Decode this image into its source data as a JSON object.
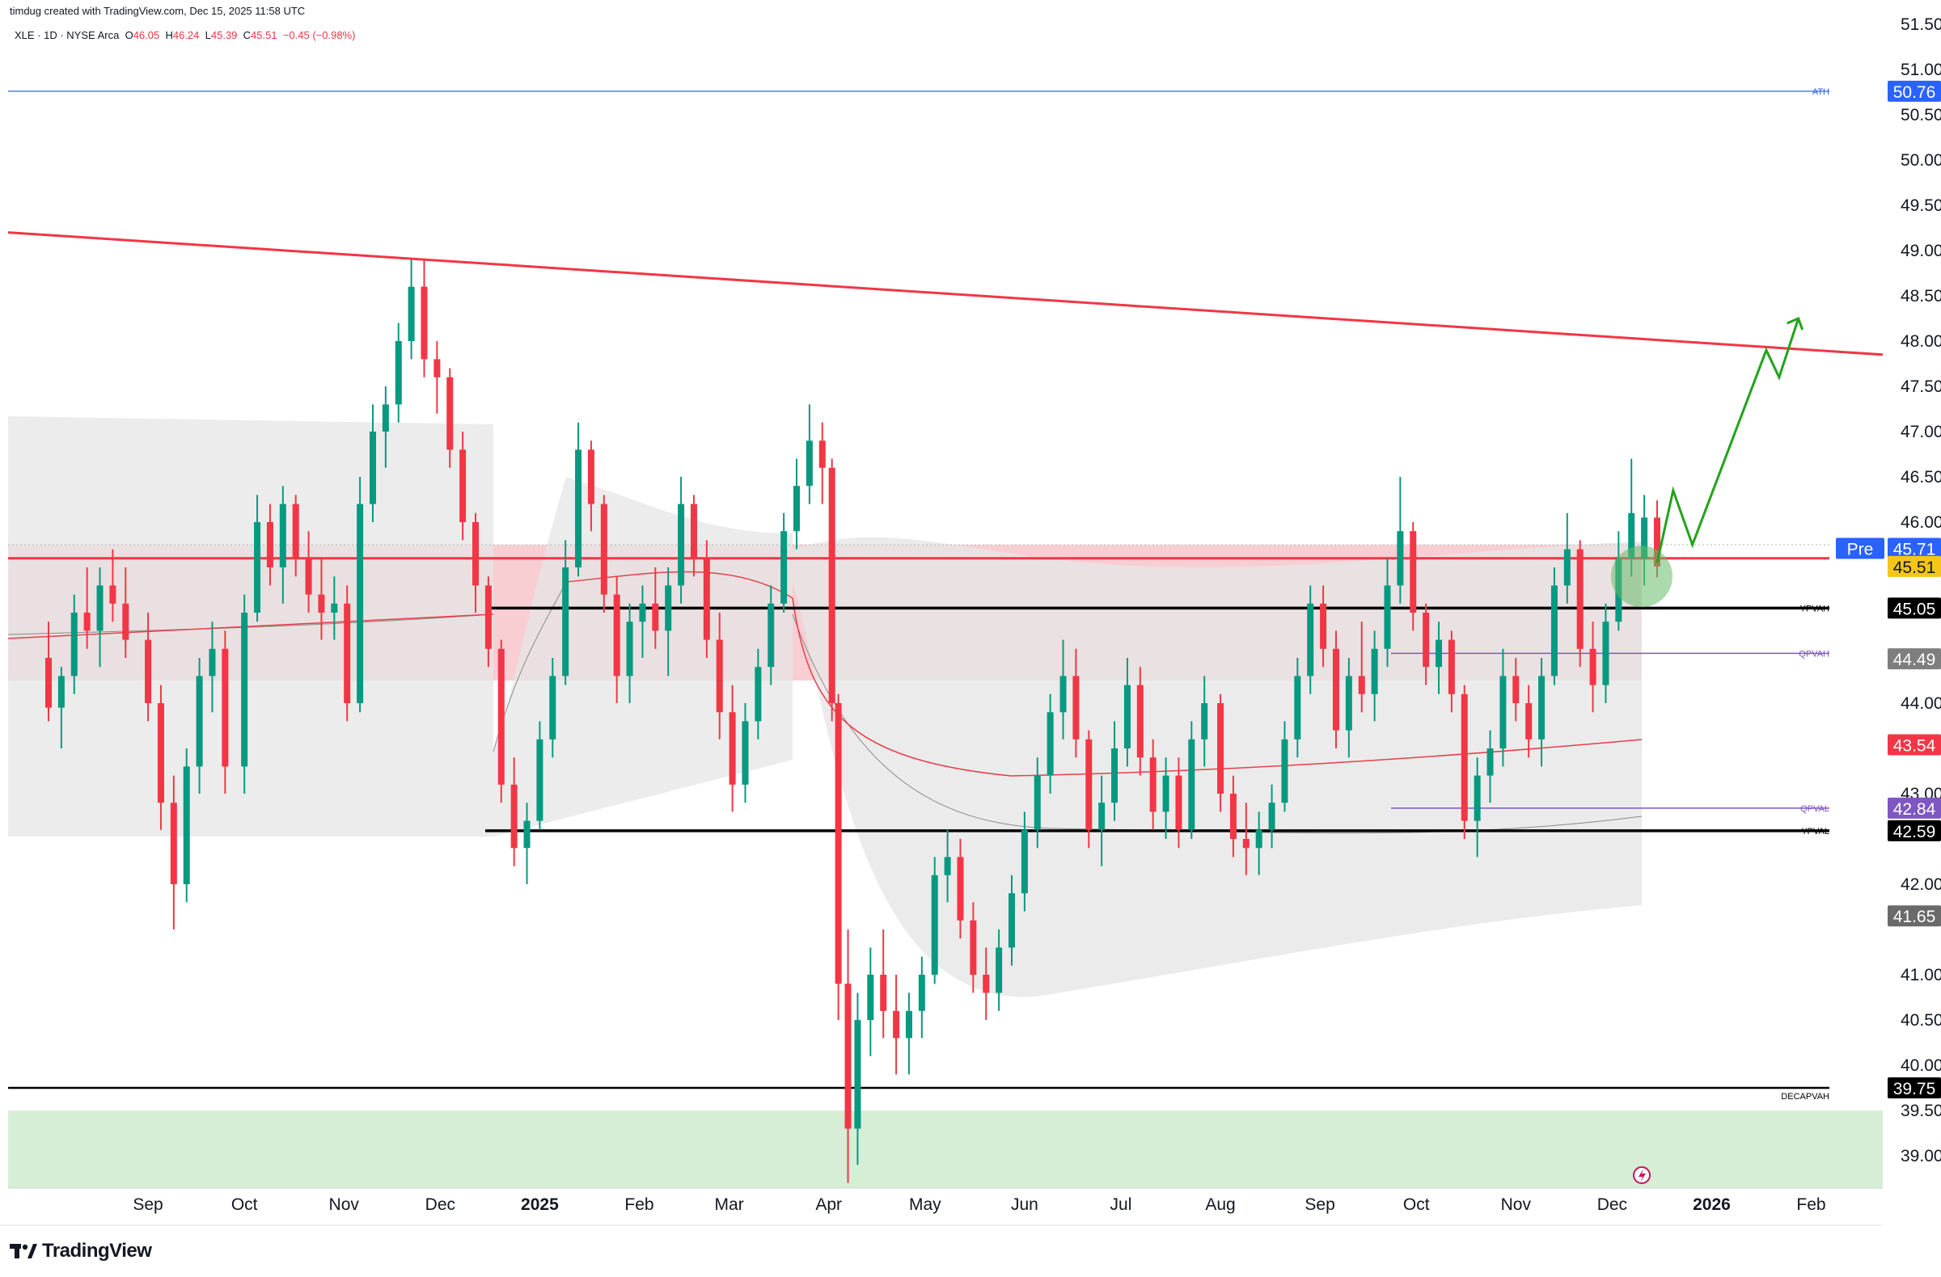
{
  "header": {
    "credit": "timdug created with TradingView.com, Dec 15, 2025 11:58 UTC",
    "symbol": "XLE · 1D · NYSE Arca",
    "o_label": "O",
    "o_value": "46.05",
    "h_label": "H",
    "h_value": "46.24",
    "l_label": "L",
    "l_value": "45.39",
    "c_label": "C",
    "c_value": "45.51",
    "change": "−0.45 (−0.98%)"
  },
  "brand": {
    "name": "TradingView"
  },
  "colors": {
    "up": "#089981",
    "down": "#f23645",
    "trend": "#f23645",
    "projection": "#22a31a",
    "ath": "#2962ff",
    "band": "#e6e6e6",
    "value_area": "#f7c6cb",
    "support_zone": "#d6eed6"
  },
  "chart_data": {
    "type": "candlestick",
    "symbol": "XLE",
    "interval": "1D",
    "y_axis": {
      "ticks": [
        "51.50",
        "51.00",
        "50.50",
        "50.00",
        "49.50",
        "49.00",
        "48.50",
        "48.00",
        "47.50",
        "47.00",
        "46.50",
        "46.00",
        "44.00",
        "43.00",
        "42.00",
        "41.00",
        "40.50",
        "40.00",
        "39.50",
        "39.00"
      ],
      "ylim": [
        38.55,
        51.6
      ]
    },
    "x_axis": {
      "ticks": [
        "Sep",
        "Oct",
        "Nov",
        "Dec",
        "2025",
        "Feb",
        "Mar",
        "Apr",
        "May",
        "Jun",
        "Jul",
        "Aug",
        "Sep",
        "Oct",
        "Nov",
        "Dec",
        "2026",
        "Feb"
      ]
    },
    "price_labels": [
      {
        "text": "50.76",
        "value": 50.76,
        "color": "#2962ff",
        "fg": "#ffffff"
      },
      {
        "text": "45.71",
        "value": 45.71,
        "color": "#2962ff",
        "fg": "#ffffff",
        "tag": "Pre"
      },
      {
        "text": "45.51",
        "value": 45.51,
        "color": "#f5c518",
        "fg": "#131722"
      },
      {
        "text": "45.05",
        "value": 45.05,
        "color": "#000000",
        "fg": "#ffffff"
      },
      {
        "text": "44.49",
        "value": 44.49,
        "color": "#7e7e7e",
        "fg": "#ffffff"
      },
      {
        "text": "43.54",
        "value": 43.54,
        "color": "#f23645",
        "fg": "#ffffff"
      },
      {
        "text": "42.84",
        "value": 42.84,
        "color": "#7e57c2",
        "fg": "#ffffff"
      },
      {
        "text": "42.59",
        "value": 42.59,
        "color": "#000000",
        "fg": "#ffffff"
      },
      {
        "text": "41.65",
        "value": 41.65,
        "color": "#6a6a6a",
        "fg": "#ffffff"
      },
      {
        "text": "39.75",
        "value": 39.75,
        "color": "#000000",
        "fg": "#ffffff"
      }
    ],
    "levels": [
      {
        "name": "ATH",
        "value": 50.76,
        "color": "#2962ff"
      },
      {
        "name": "YPVAH",
        "value": 45.05,
        "color": "#000000"
      },
      {
        "name": "QPVAH",
        "value": 44.55,
        "color": "#7e57c2"
      },
      {
        "name": "QPVAL",
        "value": 42.84,
        "color": "#7e57c2"
      },
      {
        "name": "YPVAL",
        "value": 42.59,
        "color": "#000000"
      },
      {
        "name": "DECAPVAH",
        "value": 39.75,
        "color": "#000000"
      }
    ],
    "trendline": {
      "from": [
        "2024-08-01",
        49.2
      ],
      "to": [
        "2026-02-28",
        47.85
      ]
    },
    "resistance": 45.6,
    "value_area_zone": [
      44.25,
      45.75
    ],
    "support_zone": [
      38.55,
      39.5
    ],
    "projection": [
      [
        "2025-12-15",
        45.55
      ],
      [
        "2025-12-20",
        46.35
      ],
      [
        "2025-12-26",
        45.75
      ],
      [
        "2026-01-18",
        47.9
      ],
      [
        "2026-01-22",
        47.6
      ],
      [
        "2026-01-28",
        48.25
      ]
    ],
    "candles": [
      {
        "d": "2024-08-01",
        "o": 44.5,
        "h": 44.9,
        "l": 43.8,
        "c": 43.95
      },
      {
        "d": "2024-08-05",
        "o": 43.95,
        "h": 44.4,
        "l": 43.5,
        "c": 44.3
      },
      {
        "d": "2024-08-09",
        "o": 44.3,
        "h": 45.2,
        "l": 44.1,
        "c": 45.0
      },
      {
        "d": "2024-08-13",
        "o": 45.0,
        "h": 45.5,
        "l": 44.6,
        "c": 44.8
      },
      {
        "d": "2024-08-17",
        "o": 44.8,
        "h": 45.5,
        "l": 44.4,
        "c": 45.3
      },
      {
        "d": "2024-08-21",
        "o": 45.3,
        "h": 45.7,
        "l": 44.9,
        "c": 45.1
      },
      {
        "d": "2024-08-25",
        "o": 45.1,
        "h": 45.5,
        "l": 44.5,
        "c": 44.7
      },
      {
        "d": "2024-09-01",
        "o": 44.7,
        "h": 45.0,
        "l": 43.8,
        "c": 44.0
      },
      {
        "d": "2024-09-05",
        "o": 44.0,
        "h": 44.2,
        "l": 42.6,
        "c": 42.9
      },
      {
        "d": "2024-09-09",
        "o": 42.9,
        "h": 43.2,
        "l": 41.5,
        "c": 42.0
      },
      {
        "d": "2024-09-13",
        "o": 42.0,
        "h": 43.5,
        "l": 41.8,
        "c": 43.3
      },
      {
        "d": "2024-09-17",
        "o": 43.3,
        "h": 44.5,
        "l": 43.0,
        "c": 44.3
      },
      {
        "d": "2024-09-21",
        "o": 44.3,
        "h": 44.9,
        "l": 43.9,
        "c": 44.6
      },
      {
        "d": "2024-09-25",
        "o": 44.6,
        "h": 44.8,
        "l": 43.0,
        "c": 43.3
      },
      {
        "d": "2024-10-01",
        "o": 43.3,
        "h": 45.2,
        "l": 43.0,
        "c": 45.0
      },
      {
        "d": "2024-10-05",
        "o": 45.0,
        "h": 46.3,
        "l": 44.9,
        "c": 46.0
      },
      {
        "d": "2024-10-09",
        "o": 46.0,
        "h": 46.2,
        "l": 45.3,
        "c": 45.5
      },
      {
        "d": "2024-10-13",
        "o": 45.5,
        "h": 46.4,
        "l": 45.1,
        "c": 46.2
      },
      {
        "d": "2024-10-17",
        "o": 46.2,
        "h": 46.3,
        "l": 45.4,
        "c": 45.6
      },
      {
        "d": "2024-10-21",
        "o": 45.6,
        "h": 45.9,
        "l": 45.0,
        "c": 45.2
      },
      {
        "d": "2024-10-25",
        "o": 45.2,
        "h": 45.6,
        "l": 44.7,
        "c": 45.0
      },
      {
        "d": "2024-10-29",
        "o": 45.0,
        "h": 45.4,
        "l": 44.7,
        "c": 45.1
      },
      {
        "d": "2024-11-02",
        "o": 45.1,
        "h": 45.3,
        "l": 43.8,
        "c": 44.0
      },
      {
        "d": "2024-11-06",
        "o": 44.0,
        "h": 46.5,
        "l": 43.9,
        "c": 46.2
      },
      {
        "d": "2024-11-10",
        "o": 46.2,
        "h": 47.3,
        "l": 46.0,
        "c": 47.0
      },
      {
        "d": "2024-11-14",
        "o": 47.0,
        "h": 47.5,
        "l": 46.6,
        "c": 47.3
      },
      {
        "d": "2024-11-18",
        "o": 47.3,
        "h": 48.2,
        "l": 47.1,
        "c": 48.0
      },
      {
        "d": "2024-11-22",
        "o": 48.0,
        "h": 48.9,
        "l": 47.8,
        "c": 48.6
      },
      {
        "d": "2024-11-26",
        "o": 48.6,
        "h": 48.9,
        "l": 47.6,
        "c": 47.8
      },
      {
        "d": "2024-11-30",
        "o": 47.8,
        "h": 48.0,
        "l": 47.2,
        "c": 47.6
      },
      {
        "d": "2024-12-04",
        "o": 47.6,
        "h": 47.7,
        "l": 46.6,
        "c": 46.8
      },
      {
        "d": "2024-12-08",
        "o": 46.8,
        "h": 47.0,
        "l": 45.8,
        "c": 46.0
      },
      {
        "d": "2024-12-12",
        "o": 46.0,
        "h": 46.1,
        "l": 45.0,
        "c": 45.3
      },
      {
        "d": "2024-12-16",
        "o": 45.3,
        "h": 45.4,
        "l": 44.4,
        "c": 44.6
      },
      {
        "d": "2024-12-20",
        "o": 44.6,
        "h": 44.7,
        "l": 42.9,
        "c": 43.1
      },
      {
        "d": "2024-12-24",
        "o": 43.1,
        "h": 43.4,
        "l": 42.2,
        "c": 42.4
      },
      {
        "d": "2024-12-28",
        "o": 42.4,
        "h": 42.9,
        "l": 42.0,
        "c": 42.7
      },
      {
        "d": "2025-01-01",
        "o": 42.7,
        "h": 43.8,
        "l": 42.6,
        "c": 43.6
      },
      {
        "d": "2025-01-05",
        "o": 43.6,
        "h": 44.5,
        "l": 43.4,
        "c": 44.3
      },
      {
        "d": "2025-01-09",
        "o": 44.3,
        "h": 45.8,
        "l": 44.2,
        "c": 45.5
      },
      {
        "d": "2025-01-13",
        "o": 45.5,
        "h": 47.1,
        "l": 45.4,
        "c": 46.8
      },
      {
        "d": "2025-01-17",
        "o": 46.8,
        "h": 46.9,
        "l": 45.9,
        "c": 46.2
      },
      {
        "d": "2025-01-21",
        "o": 46.2,
        "h": 46.3,
        "l": 45.0,
        "c": 45.2
      },
      {
        "d": "2025-01-25",
        "o": 45.2,
        "h": 45.4,
        "l": 44.0,
        "c": 44.3
      },
      {
        "d": "2025-01-29",
        "o": 44.3,
        "h": 45.1,
        "l": 44.0,
        "c": 44.9
      },
      {
        "d": "2025-02-02",
        "o": 44.9,
        "h": 45.3,
        "l": 44.5,
        "c": 45.1
      },
      {
        "d": "2025-02-06",
        "o": 45.1,
        "h": 45.5,
        "l": 44.6,
        "c": 44.8
      },
      {
        "d": "2025-02-10",
        "o": 44.8,
        "h": 45.5,
        "l": 44.3,
        "c": 45.3
      },
      {
        "d": "2025-02-14",
        "o": 45.3,
        "h": 46.5,
        "l": 45.1,
        "c": 46.2
      },
      {
        "d": "2025-02-18",
        "o": 46.2,
        "h": 46.3,
        "l": 45.4,
        "c": 45.6
      },
      {
        "d": "2025-02-22",
        "o": 45.6,
        "h": 45.8,
        "l": 44.5,
        "c": 44.7
      },
      {
        "d": "2025-02-26",
        "o": 44.7,
        "h": 45.0,
        "l": 43.6,
        "c": 43.9
      },
      {
        "d": "2025-03-02",
        "o": 43.9,
        "h": 44.2,
        "l": 42.8,
        "c": 43.1
      },
      {
        "d": "2025-03-06",
        "o": 43.1,
        "h": 44.0,
        "l": 42.9,
        "c": 43.8
      },
      {
        "d": "2025-03-10",
        "o": 43.8,
        "h": 44.6,
        "l": 43.6,
        "c": 44.4
      },
      {
        "d": "2025-03-14",
        "o": 44.4,
        "h": 45.3,
        "l": 44.2,
        "c": 45.1
      },
      {
        "d": "2025-03-18",
        "o": 45.1,
        "h": 46.1,
        "l": 45.0,
        "c": 45.9
      },
      {
        "d": "2025-03-22",
        "o": 45.9,
        "h": 46.7,
        "l": 45.7,
        "c": 46.4
      },
      {
        "d": "2025-03-26",
        "o": 46.4,
        "h": 47.3,
        "l": 46.2,
        "c": 46.9
      },
      {
        "d": "2025-03-30",
        "o": 46.9,
        "h": 47.1,
        "l": 46.2,
        "c": 46.6
      },
      {
        "d": "2025-04-02",
        "o": 46.6,
        "h": 46.7,
        "l": 43.8,
        "c": 44.0
      },
      {
        "d": "2025-04-04",
        "o": 44.0,
        "h": 44.1,
        "l": 40.5,
        "c": 40.9
      },
      {
        "d": "2025-04-07",
        "o": 40.9,
        "h": 41.5,
        "l": 38.7,
        "c": 39.3
      },
      {
        "d": "2025-04-10",
        "o": 39.3,
        "h": 40.8,
        "l": 38.9,
        "c": 40.5
      },
      {
        "d": "2025-04-14",
        "o": 40.5,
        "h": 41.3,
        "l": 40.1,
        "c": 41.0
      },
      {
        "d": "2025-04-18",
        "o": 41.0,
        "h": 41.5,
        "l": 40.3,
        "c": 40.6
      },
      {
        "d": "2025-04-22",
        "o": 40.6,
        "h": 41.0,
        "l": 39.9,
        "c": 40.3
      },
      {
        "d": "2025-04-26",
        "o": 40.3,
        "h": 40.8,
        "l": 39.9,
        "c": 40.6
      },
      {
        "d": "2025-04-30",
        "o": 40.6,
        "h": 41.2,
        "l": 40.3,
        "c": 41.0
      },
      {
        "d": "2025-05-04",
        "o": 41.0,
        "h": 42.3,
        "l": 40.9,
        "c": 42.1
      },
      {
        "d": "2025-05-08",
        "o": 42.1,
        "h": 42.6,
        "l": 41.8,
        "c": 42.3
      },
      {
        "d": "2025-05-12",
        "o": 42.3,
        "h": 42.5,
        "l": 41.4,
        "c": 41.6
      },
      {
        "d": "2025-05-16",
        "o": 41.6,
        "h": 41.8,
        "l": 40.8,
        "c": 41.0
      },
      {
        "d": "2025-05-20",
        "o": 41.0,
        "h": 41.3,
        "l": 40.5,
        "c": 40.8
      },
      {
        "d": "2025-05-24",
        "o": 40.8,
        "h": 41.5,
        "l": 40.6,
        "c": 41.3
      },
      {
        "d": "2025-05-28",
        "o": 41.3,
        "h": 42.1,
        "l": 41.1,
        "c": 41.9
      },
      {
        "d": "2025-06-01",
        "o": 41.9,
        "h": 42.8,
        "l": 41.7,
        "c": 42.6
      },
      {
        "d": "2025-06-05",
        "o": 42.6,
        "h": 43.4,
        "l": 42.4,
        "c": 43.2
      },
      {
        "d": "2025-06-09",
        "o": 43.2,
        "h": 44.1,
        "l": 43.0,
        "c": 43.9
      },
      {
        "d": "2025-06-13",
        "o": 43.9,
        "h": 44.7,
        "l": 43.6,
        "c": 44.3
      },
      {
        "d": "2025-06-17",
        "o": 44.3,
        "h": 44.6,
        "l": 43.4,
        "c": 43.6
      },
      {
        "d": "2025-06-21",
        "o": 43.6,
        "h": 43.7,
        "l": 42.4,
        "c": 42.6
      },
      {
        "d": "2025-06-25",
        "o": 42.6,
        "h": 43.2,
        "l": 42.2,
        "c": 42.9
      },
      {
        "d": "2025-06-29",
        "o": 42.9,
        "h": 43.8,
        "l": 42.7,
        "c": 43.5
      },
      {
        "d": "2025-07-03",
        "o": 43.5,
        "h": 44.5,
        "l": 43.3,
        "c": 44.2
      },
      {
        "d": "2025-07-07",
        "o": 44.2,
        "h": 44.4,
        "l": 43.2,
        "c": 43.4
      },
      {
        "d": "2025-07-11",
        "o": 43.4,
        "h": 43.6,
        "l": 42.6,
        "c": 42.8
      },
      {
        "d": "2025-07-15",
        "o": 42.8,
        "h": 43.4,
        "l": 42.5,
        "c": 43.2
      },
      {
        "d": "2025-07-19",
        "o": 43.2,
        "h": 43.4,
        "l": 42.4,
        "c": 42.6
      },
      {
        "d": "2025-07-23",
        "o": 42.6,
        "h": 43.8,
        "l": 42.5,
        "c": 43.6
      },
      {
        "d": "2025-07-27",
        "o": 43.6,
        "h": 44.3,
        "l": 43.3,
        "c": 44.0
      },
      {
        "d": "2025-08-01",
        "o": 44.0,
        "h": 44.1,
        "l": 42.8,
        "c": 43.0
      },
      {
        "d": "2025-08-05",
        "o": 43.0,
        "h": 43.2,
        "l": 42.3,
        "c": 42.5
      },
      {
        "d": "2025-08-09",
        "o": 42.5,
        "h": 42.9,
        "l": 42.1,
        "c": 42.4
      },
      {
        "d": "2025-08-13",
        "o": 42.4,
        "h": 42.8,
        "l": 42.1,
        "c": 42.6
      },
      {
        "d": "2025-08-17",
        "o": 42.6,
        "h": 43.1,
        "l": 42.4,
        "c": 42.9
      },
      {
        "d": "2025-08-21",
        "o": 42.9,
        "h": 43.8,
        "l": 42.8,
        "c": 43.6
      },
      {
        "d": "2025-08-25",
        "o": 43.6,
        "h": 44.5,
        "l": 43.4,
        "c": 44.3
      },
      {
        "d": "2025-08-29",
        "o": 44.3,
        "h": 45.3,
        "l": 44.1,
        "c": 45.1
      },
      {
        "d": "2025-09-02",
        "o": 45.1,
        "h": 45.3,
        "l": 44.4,
        "c": 44.6
      },
      {
        "d": "2025-09-06",
        "o": 44.6,
        "h": 44.8,
        "l": 43.5,
        "c": 43.7
      },
      {
        "d": "2025-09-10",
        "o": 43.7,
        "h": 44.5,
        "l": 43.4,
        "c": 44.3
      },
      {
        "d": "2025-09-14",
        "o": 44.3,
        "h": 44.9,
        "l": 43.9,
        "c": 44.1
      },
      {
        "d": "2025-09-18",
        "o": 44.1,
        "h": 44.8,
        "l": 43.8,
        "c": 44.6
      },
      {
        "d": "2025-09-22",
        "o": 44.6,
        "h": 45.6,
        "l": 44.4,
        "c": 45.3
      },
      {
        "d": "2025-09-26",
        "o": 45.3,
        "h": 46.5,
        "l": 45.1,
        "c": 45.9
      },
      {
        "d": "2025-09-30",
        "o": 45.9,
        "h": 46.0,
        "l": 44.8,
        "c": 45.0
      },
      {
        "d": "2025-10-04",
        "o": 45.0,
        "h": 45.1,
        "l": 44.2,
        "c": 44.4
      },
      {
        "d": "2025-10-08",
        "o": 44.4,
        "h": 44.9,
        "l": 44.1,
        "c": 44.7
      },
      {
        "d": "2025-10-12",
        "o": 44.7,
        "h": 44.8,
        "l": 43.9,
        "c": 44.1
      },
      {
        "d": "2025-10-16",
        "o": 44.1,
        "h": 44.2,
        "l": 42.5,
        "c": 42.7
      },
      {
        "d": "2025-10-20",
        "o": 42.7,
        "h": 43.4,
        "l": 42.3,
        "c": 43.2
      },
      {
        "d": "2025-10-24",
        "o": 43.2,
        "h": 43.7,
        "l": 42.9,
        "c": 43.5
      },
      {
        "d": "2025-10-28",
        "o": 43.5,
        "h": 44.6,
        "l": 43.3,
        "c": 44.3
      },
      {
        "d": "2025-11-01",
        "o": 44.3,
        "h": 44.5,
        "l": 43.8,
        "c": 44.0
      },
      {
        "d": "2025-11-05",
        "o": 44.0,
        "h": 44.2,
        "l": 43.4,
        "c": 43.6
      },
      {
        "d": "2025-11-09",
        "o": 43.6,
        "h": 44.5,
        "l": 43.3,
        "c": 44.3
      },
      {
        "d": "2025-11-13",
        "o": 44.3,
        "h": 45.5,
        "l": 44.2,
        "c": 45.3
      },
      {
        "d": "2025-11-17",
        "o": 45.3,
        "h": 46.1,
        "l": 45.1,
        "c": 45.7
      },
      {
        "d": "2025-11-21",
        "o": 45.7,
        "h": 45.8,
        "l": 44.4,
        "c": 44.6
      },
      {
        "d": "2025-11-25",
        "o": 44.6,
        "h": 44.9,
        "l": 43.9,
        "c": 44.2
      },
      {
        "d": "2025-11-29",
        "o": 44.2,
        "h": 45.1,
        "l": 44.0,
        "c": 44.9
      },
      {
        "d": "2025-12-03",
        "o": 44.9,
        "h": 45.9,
        "l": 44.8,
        "c": 45.6
      },
      {
        "d": "2025-12-07",
        "o": 45.6,
        "h": 46.7,
        "l": 45.4,
        "c": 46.1
      },
      {
        "d": "2025-12-11",
        "o": 45.6,
        "h": 46.3,
        "l": 45.3,
        "c": 46.05
      },
      {
        "d": "2025-12-15",
        "o": 46.05,
        "h": 46.24,
        "l": 45.39,
        "c": 45.51
      }
    ]
  }
}
